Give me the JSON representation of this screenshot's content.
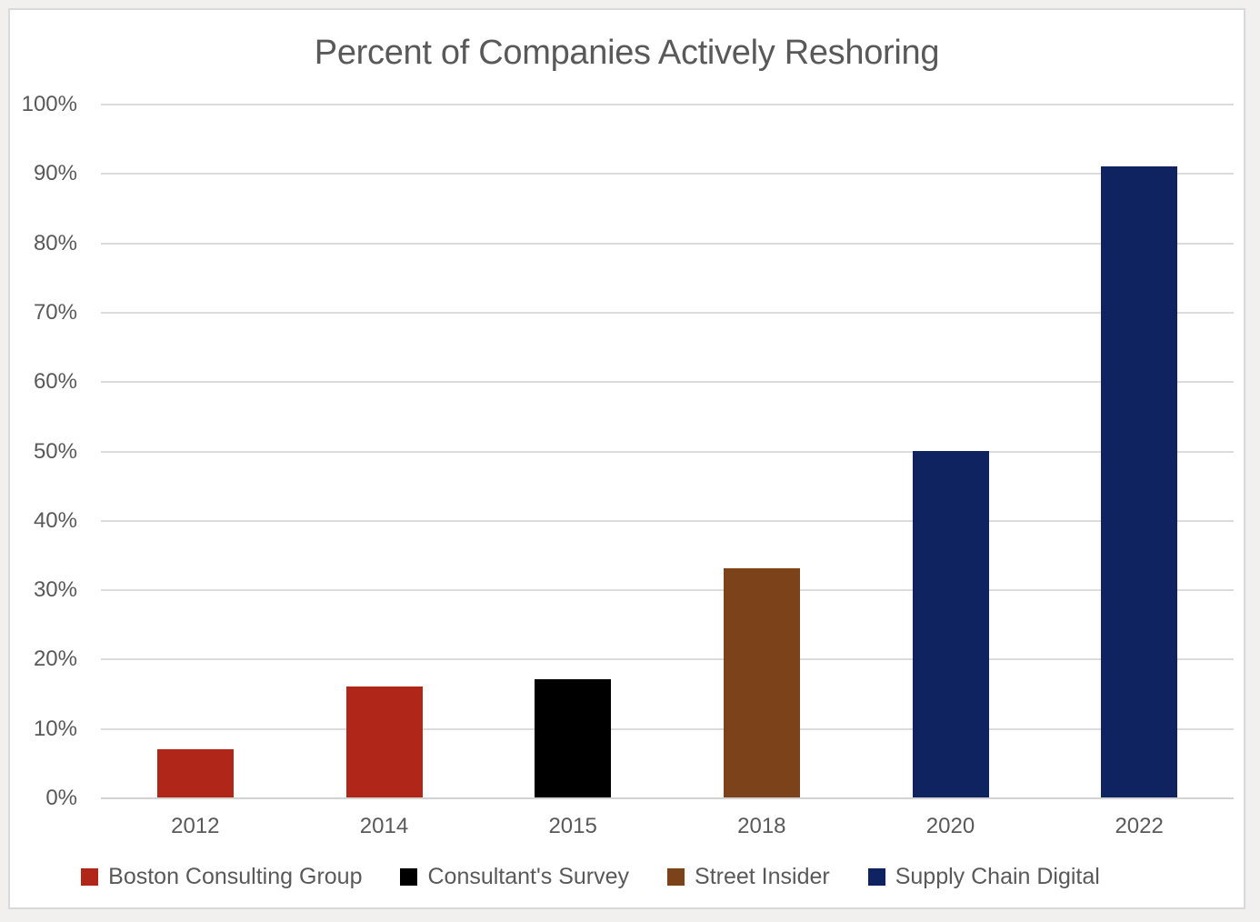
{
  "chart_data": {
    "type": "bar",
    "title": "Percent of Companies Actively Reshoring",
    "categories": [
      "2012",
      "2014",
      "2015",
      "2018",
      "2020",
      "2022"
    ],
    "values": [
      7,
      16,
      17,
      33,
      50,
      91
    ],
    "bar_series": [
      "Boston Consulting Group",
      "Boston Consulting Group",
      "Consultant's Survey",
      "Street Insider",
      "Supply Chain Digital",
      "Supply Chain Digital"
    ],
    "bar_colors": [
      "#b02618",
      "#b02618",
      "#000000",
      "#7c431a",
      "#0e2360",
      "#0e2360"
    ],
    "xlabel": "",
    "ylabel": "",
    "ylim": [
      0,
      100
    ],
    "ytick_step": 10,
    "ytick_labels": [
      "0%",
      "10%",
      "20%",
      "30%",
      "40%",
      "50%",
      "60%",
      "70%",
      "80%",
      "90%",
      "100%"
    ],
    "grid": "horizontal-only",
    "legend_position": "bottom-center",
    "legend": [
      {
        "label": "Boston Consulting Group",
        "color": "#b02618"
      },
      {
        "label": "Consultant's Survey",
        "color": "#000000"
      },
      {
        "label": "Street Insider",
        "color": "#7c431a"
      },
      {
        "label": "Supply Chain Digital",
        "color": "#0e2360"
      }
    ]
  },
  "colors": {
    "canvas_background": "#f1f0ee",
    "chart_background": "#ffffff",
    "chart_border": "#d9d9d9",
    "gridline": "#dcdcdc",
    "text": "#595959"
  }
}
